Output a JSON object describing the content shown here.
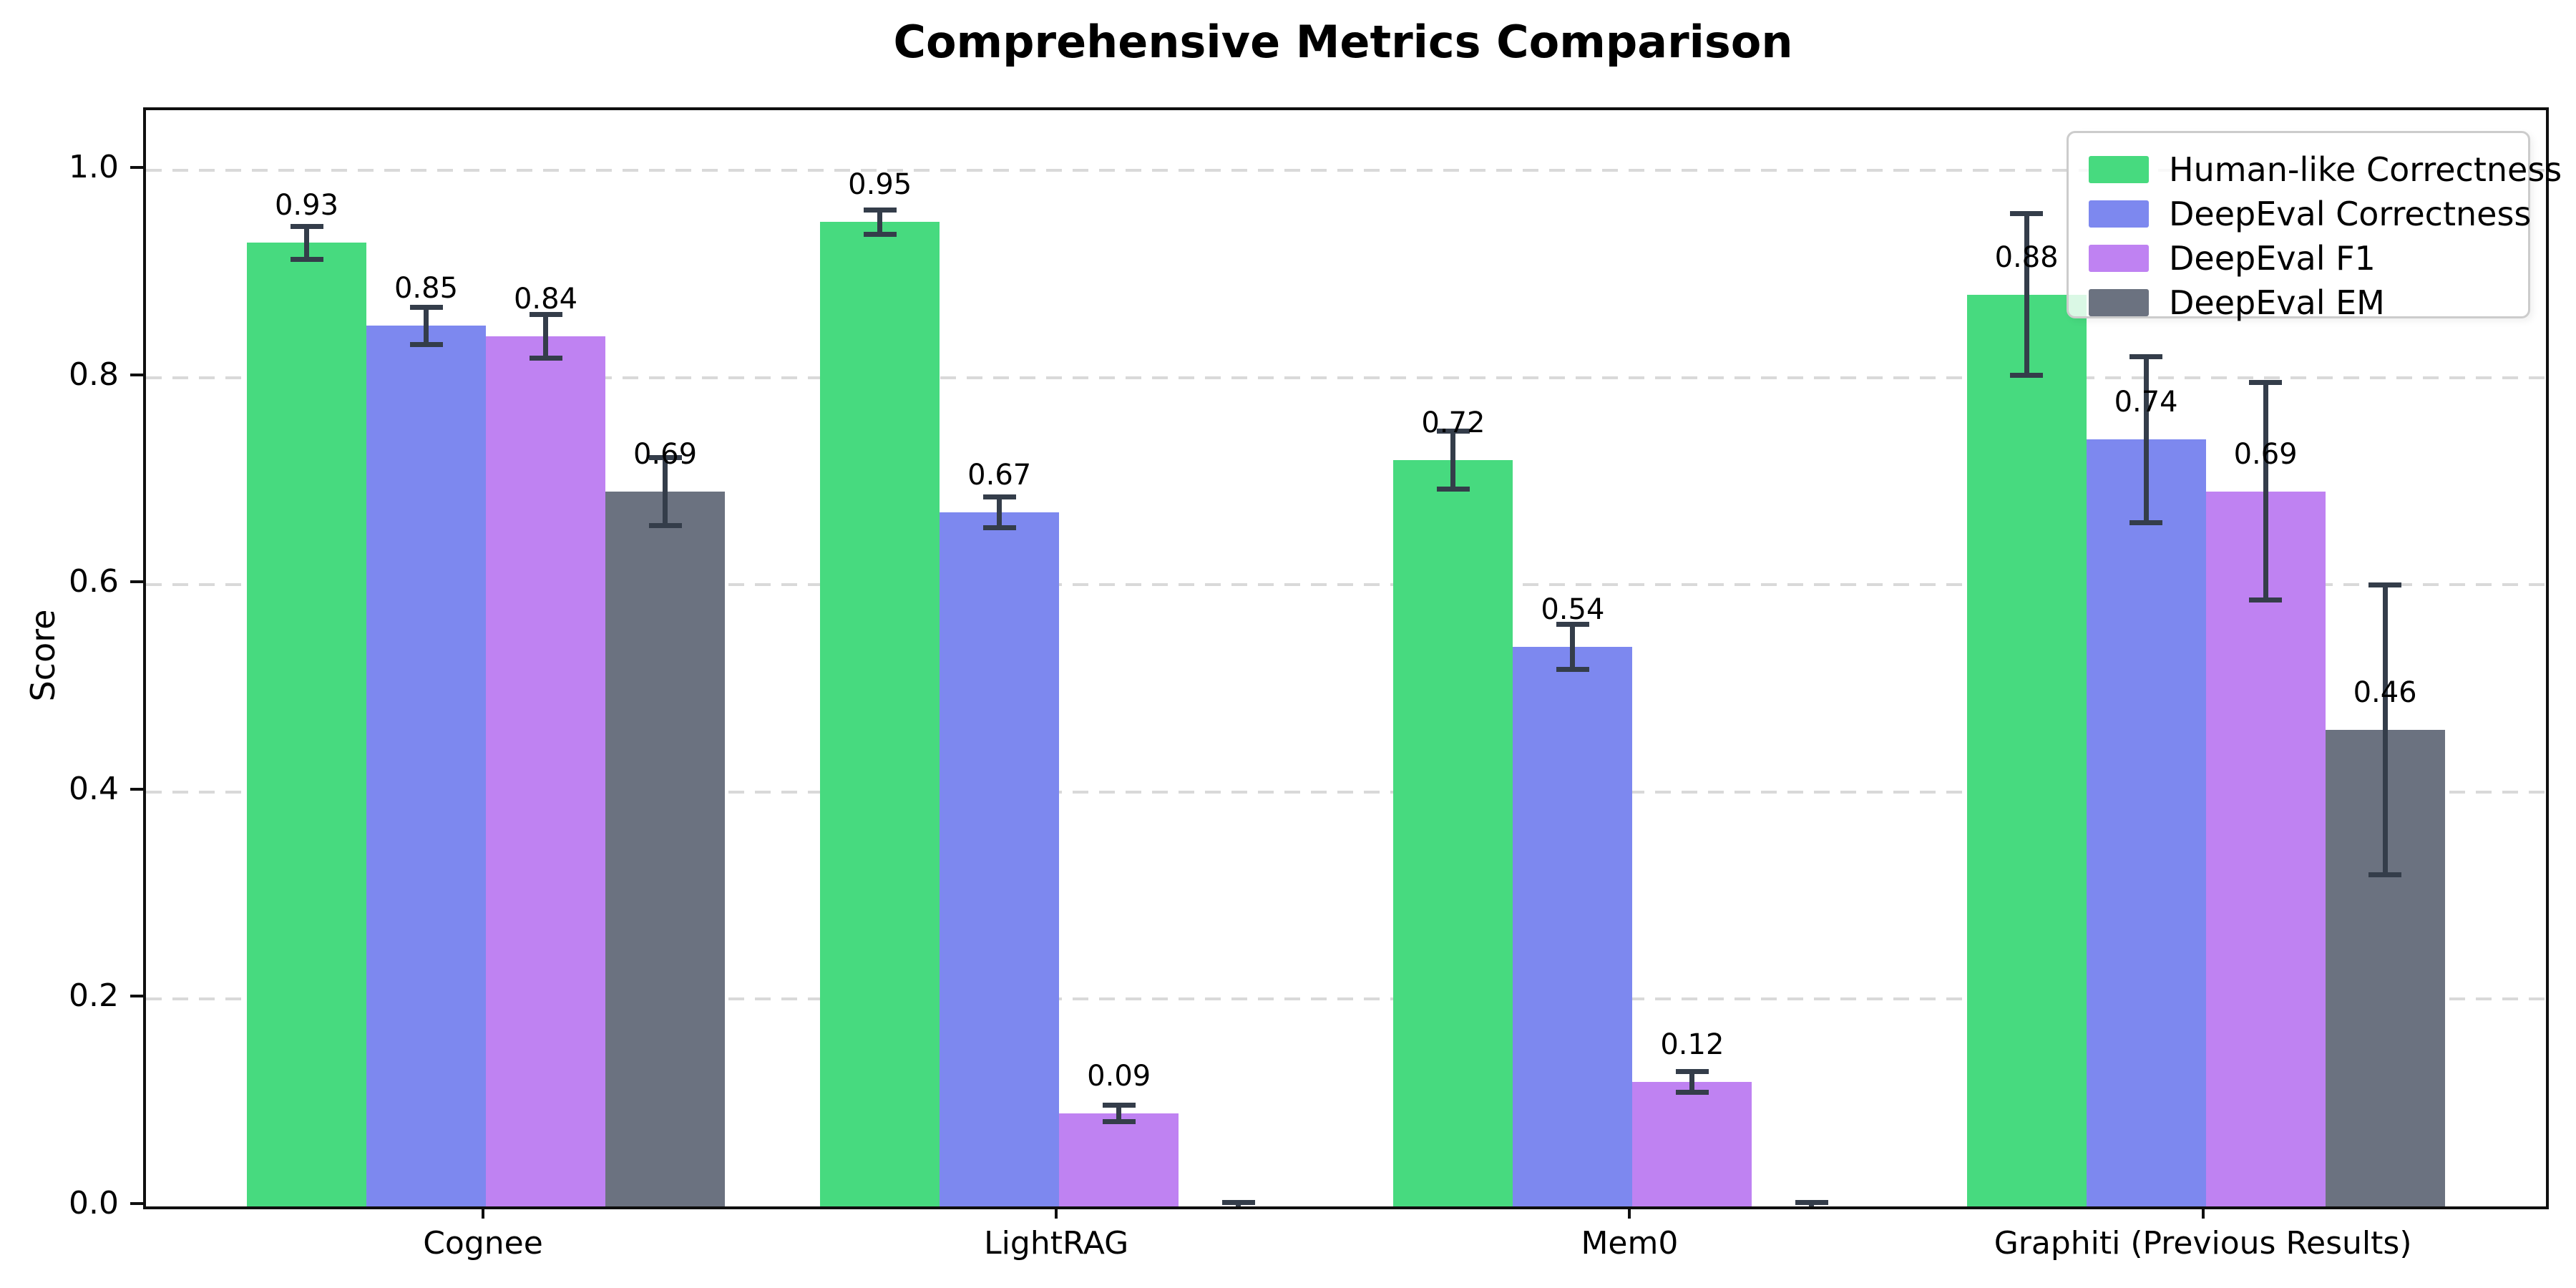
{
  "chart_data": {
    "type": "bar",
    "title": "Comprehensive Metrics Comparison",
    "ylabel": "Score",
    "xlabel": "",
    "categories": [
      "Cognee",
      "LightRAG",
      "Mem0",
      "Graphiti (Previous Results)"
    ],
    "series": [
      {
        "name": "Human-like Correctness",
        "color": "#47da7f",
        "values": [
          0.93,
          0.95,
          0.72,
          0.88
        ],
        "errors": [
          0.016,
          0.012,
          0.028,
          0.078
        ],
        "bar_labels": [
          "0.93",
          "0.95",
          "0.72",
          "0.88"
        ]
      },
      {
        "name": "DeepEval Correctness",
        "color": "#7d88ef",
        "values": [
          0.85,
          0.67,
          0.54,
          0.74
        ],
        "errors": [
          0.018,
          0.015,
          0.022,
          0.08
        ],
        "bar_labels": [
          "0.85",
          "0.67",
          "0.54",
          "0.74"
        ]
      },
      {
        "name": "DeepEval F1",
        "color": "#bf82f2",
        "values": [
          0.84,
          0.09,
          0.12,
          0.69
        ],
        "errors": [
          0.021,
          0.008,
          0.01,
          0.105
        ],
        "bar_labels": [
          "0.84",
          "0.09",
          "0.12",
          "0.69"
        ]
      },
      {
        "name": "DeepEval EM",
        "color": "#6b7280",
        "values": [
          0.69,
          0.0,
          0.0,
          0.46
        ],
        "errors": [
          0.033,
          0.004,
          0.004,
          0.14
        ],
        "bar_labels": [
          "0.69",
          "",
          "",
          "0.46"
        ]
      }
    ],
    "ytick_values": [
      0.0,
      0.2,
      0.4,
      0.6,
      0.8,
      1.0
    ],
    "ytick_labels": [
      "0.0",
      "0.2",
      "0.4",
      "0.6",
      "0.8",
      "1.0"
    ],
    "ylim": [
      0,
      1.058
    ],
    "grid": "horizontal-dashed",
    "grid_color": "#d9d9d9",
    "axis_color": "#0f0f0f",
    "error_bar_color": "#343d4a",
    "legend_position": "upper-right",
    "legend_entries": [
      "Human-like Correctness",
      "DeepEval Correctness",
      "DeepEval F1",
      "DeepEval EM"
    ]
  }
}
